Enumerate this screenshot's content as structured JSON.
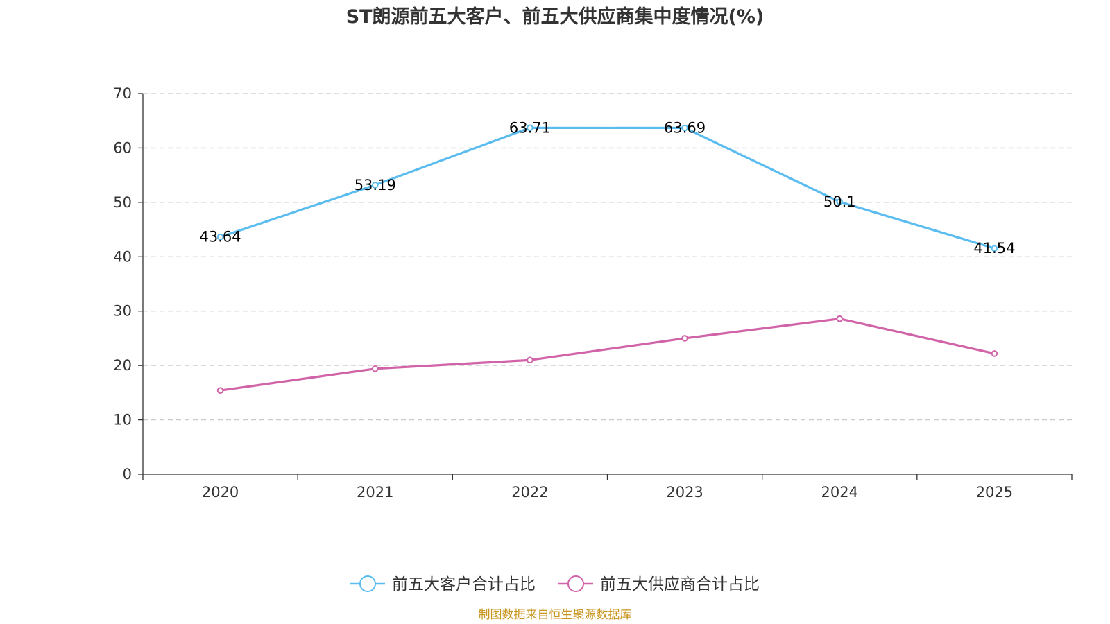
{
  "chart_data": {
    "type": "line",
    "title": "ST朗源前五大客户、前五大供应商集中度情况(%)",
    "categories": [
      "2020",
      "2021",
      "2022",
      "2023",
      "2024",
      "2025"
    ],
    "ylim": [
      0,
      70
    ],
    "yticks": [
      0,
      10,
      20,
      30,
      40,
      50,
      60,
      70
    ],
    "ytick_labels": [
      "0",
      "10",
      "20",
      "30",
      "40",
      "50",
      "60",
      "70"
    ],
    "grid": true,
    "legend_position": "bottom-center",
    "series": [
      {
        "name": "前五大客户合计占比",
        "color": "#5bbcf0",
        "values": [
          43.64,
          53.19,
          63.71,
          63.69,
          50.1,
          41.54
        ],
        "labels": [
          "43.64",
          "53.19",
          "63.71",
          "63.69",
          "50.1",
          "41.54"
        ],
        "show_labels": true
      },
      {
        "name": "前五大供应商合计占比",
        "color": "#d163a8",
        "values": [
          15.4,
          19.4,
          21.0,
          25.0,
          28.6,
          22.2
        ],
        "show_labels": false
      }
    ]
  },
  "source_text": "制图数据来自恒生聚源数据库",
  "source_color": "#c8961e"
}
